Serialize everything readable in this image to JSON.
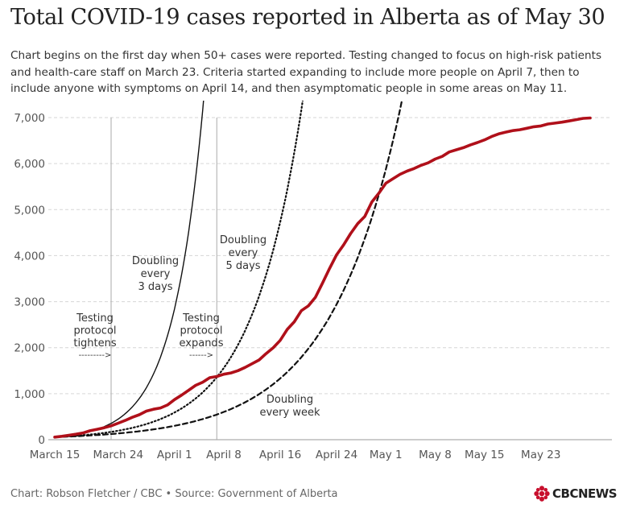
{
  "title": "Total COVID-19 cases reported in Alberta as of May 30",
  "subtitle": "Chart begins on the first day when 50+ cases were reported. Testing changed to focus on high-risk patients and health-care staff on March 23.  Criteria started expanding to include more people on April 7, then to include anyone with symptoms on April 14, and then asymptomatic people in some areas on May 11.",
  "source": "Chart: Robson Fletcher / CBC • Source: Government of Alberta",
  "logo": {
    "icon": "cbc-gem-icon",
    "text": "CBCNEWS",
    "color": "#c8102e"
  },
  "chart_data": {
    "type": "line",
    "xlabel": "",
    "ylabel": "",
    "x_axis": {
      "start_date": "2020-03-15",
      "end_date": "2020-05-30",
      "tick_labels": [
        "March 15",
        "March 24",
        "April 1",
        "April 8",
        "April 16",
        "April 24",
        "May 1",
        "May 8",
        "May 15",
        "May 23"
      ],
      "tick_dates": [
        "2020-03-15",
        "2020-03-24",
        "2020-04-01",
        "2020-04-08",
        "2020-04-16",
        "2020-04-24",
        "2020-05-01",
        "2020-05-08",
        "2020-05-15",
        "2020-05-23"
      ]
    },
    "y_axis": {
      "ylim": [
        0,
        7000
      ],
      "ticks": [
        0,
        1000,
        2000,
        3000,
        4000,
        5000,
        6000,
        7000
      ],
      "tick_labels": [
        "0",
        "1,000",
        "2,000",
        "3,000",
        "4,000",
        "5,000",
        "6,000",
        "7,000"
      ],
      "grid": true
    },
    "series": [
      {
        "name": "",
        "color": "#b0101a",
        "style": "solid-thick",
        "x": [
          "2020-03-15",
          "2020-03-16",
          "2020-03-17",
          "2020-03-18",
          "2020-03-19",
          "2020-03-20",
          "2020-03-21",
          "2020-03-22",
          "2020-03-23",
          "2020-03-24",
          "2020-03-25",
          "2020-03-26",
          "2020-03-27",
          "2020-03-28",
          "2020-03-29",
          "2020-03-30",
          "2020-03-31",
          "2020-04-01",
          "2020-04-02",
          "2020-04-03",
          "2020-04-04",
          "2020-04-05",
          "2020-04-06",
          "2020-04-07",
          "2020-04-08",
          "2020-04-09",
          "2020-04-10",
          "2020-04-11",
          "2020-04-12",
          "2020-04-13",
          "2020-04-14",
          "2020-04-15",
          "2020-04-16",
          "2020-04-17",
          "2020-04-18",
          "2020-04-19",
          "2020-04-20",
          "2020-04-21",
          "2020-04-22",
          "2020-04-23",
          "2020-04-24",
          "2020-04-25",
          "2020-04-26",
          "2020-04-27",
          "2020-04-28",
          "2020-04-29",
          "2020-04-30",
          "2020-05-01",
          "2020-05-02",
          "2020-05-03",
          "2020-05-04",
          "2020-05-05",
          "2020-05-06",
          "2020-05-07",
          "2020-05-08",
          "2020-05-09",
          "2020-05-10",
          "2020-05-11",
          "2020-05-12",
          "2020-05-13",
          "2020-05-14",
          "2020-05-15",
          "2020-05-16",
          "2020-05-17",
          "2020-05-18",
          "2020-05-19",
          "2020-05-20",
          "2020-05-21",
          "2020-05-22",
          "2020-05-23",
          "2020-05-24",
          "2020-05-25",
          "2020-05-26",
          "2020-05-27",
          "2020-05-28",
          "2020-05-29",
          "2020-05-30"
        ],
        "values": [
          56,
          74,
          97,
          119,
          146,
          195,
          226,
          259,
          301,
          358,
          419,
          486,
          542,
          621,
          661,
          690,
          754,
          871,
          968,
          1075,
          1181,
          1250,
          1348,
          1373,
          1423,
          1451,
          1500,
          1569,
          1651,
          1732,
          1870,
          1996,
          2158,
          2397,
          2562,
          2803,
          2908,
          3095,
          3401,
          3720,
          4017,
          4233,
          4480,
          4696,
          4850,
          5165,
          5355,
          5573,
          5670,
          5766,
          5836,
          5893,
          5963,
          6017,
          6098,
          6157,
          6253,
          6300,
          6345,
          6407,
          6457,
          6515,
          6587,
          6644,
          6683,
          6716,
          6735,
          6768,
          6800,
          6818,
          6860,
          6879,
          6900,
          6926,
          6955,
          6983,
          6992
        ]
      }
    ],
    "reference_lines": [
      {
        "label_lines": [
          "Doubling",
          "every",
          "3 days"
        ],
        "doubling_days": 3,
        "start_value": 56,
        "style": "solid-thin"
      },
      {
        "label_lines": [
          "Doubling",
          "every",
          "5 days"
        ],
        "doubling_days": 5,
        "start_value": 56,
        "style": "dotted"
      },
      {
        "label_lines": [
          "Doubling",
          "every week"
        ],
        "doubling_days": 7,
        "start_value": 56,
        "style": "dashed"
      }
    ],
    "event_markers": [
      {
        "date": "2020-03-23",
        "label_lines": [
          "Testing",
          "protocol",
          "tightens"
        ],
        "arrow": "--------->"
      },
      {
        "date": "2020-04-07",
        "label_lines": [
          "Testing",
          "protocol",
          "expands"
        ],
        "arrow": "------>"
      }
    ]
  }
}
